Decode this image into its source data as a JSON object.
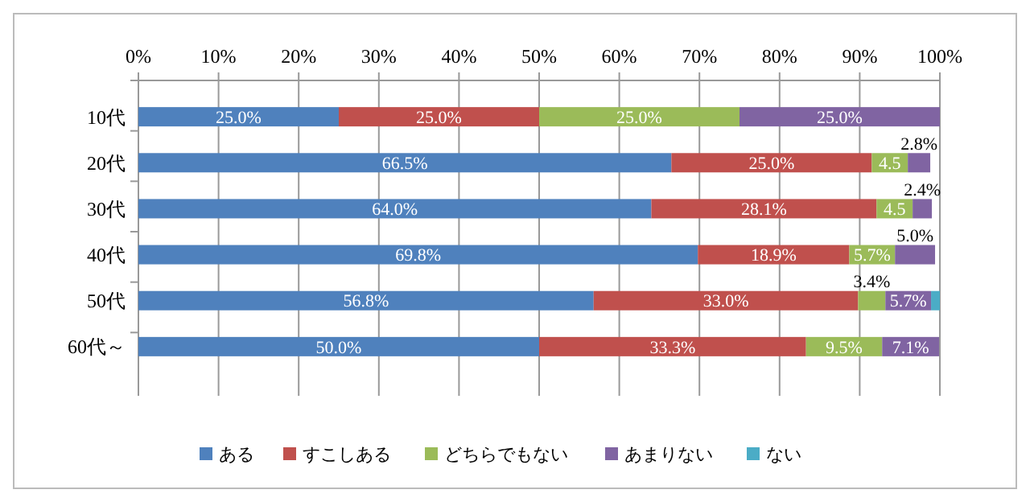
{
  "chart_data": {
    "type": "bar",
    "orientation": "horizontal",
    "stacked": true,
    "categories": [
      "10代",
      "20代",
      "30代",
      "40代",
      "50代",
      "60代～"
    ],
    "xlim": [
      0,
      100
    ],
    "xticks": [
      {
        "value": 0,
        "label": "0%"
      },
      {
        "value": 10,
        "label": "10%"
      },
      {
        "value": 20,
        "label": "20%"
      },
      {
        "value": 30,
        "label": "30%"
      },
      {
        "value": 40,
        "label": "40%"
      },
      {
        "value": 50,
        "label": "50%"
      },
      {
        "value": 60,
        "label": "60%"
      },
      {
        "value": 70,
        "label": "70%"
      },
      {
        "value": 80,
        "label": "80%"
      },
      {
        "value": 90,
        "label": "90%"
      },
      {
        "value": 100,
        "label": "100%"
      }
    ],
    "grid": "x",
    "legend": "bottom",
    "series": [
      {
        "name": "ある",
        "color": "#4f81bd",
        "values": [
          25.0,
          66.5,
          64.0,
          69.8,
          56.8,
          50.0
        ],
        "value_labels": [
          "25.0%",
          "66.5%",
          "64.0%",
          "69.8%",
          "56.8%",
          "50.0%"
        ]
      },
      {
        "name": "すこしある",
        "color": "#c0504d",
        "values": [
          25.0,
          25.0,
          28.1,
          18.9,
          33.0,
          33.3
        ],
        "value_labels": [
          "25.0%",
          "25.0%",
          "28.1%",
          "18.9%",
          "33.0%",
          "33.3%"
        ]
      },
      {
        "name": "どちらでもない",
        "color": "#9bbb59",
        "values": [
          25.0,
          4.5,
          4.5,
          5.7,
          3.4,
          9.5
        ],
        "value_labels": [
          "25.0%",
          "4.5",
          "4.5",
          "5.7%",
          "3.4%",
          "9.5%"
        ]
      },
      {
        "name": "あまりない",
        "color": "#8064a2",
        "values": [
          25.0,
          2.8,
          2.4,
          5.0,
          5.7,
          7.1
        ],
        "value_labels": [
          "25.0%",
          "2.8%",
          "2.4%",
          "5.0%",
          "5.7%",
          "7.1%"
        ]
      },
      {
        "name": "ない",
        "color": "#4bacc6",
        "values": [
          0,
          null,
          null,
          null,
          1.1,
          null
        ],
        "value_labels": [
          null,
          null,
          null,
          null,
          null,
          null
        ]
      }
    ]
  }
}
